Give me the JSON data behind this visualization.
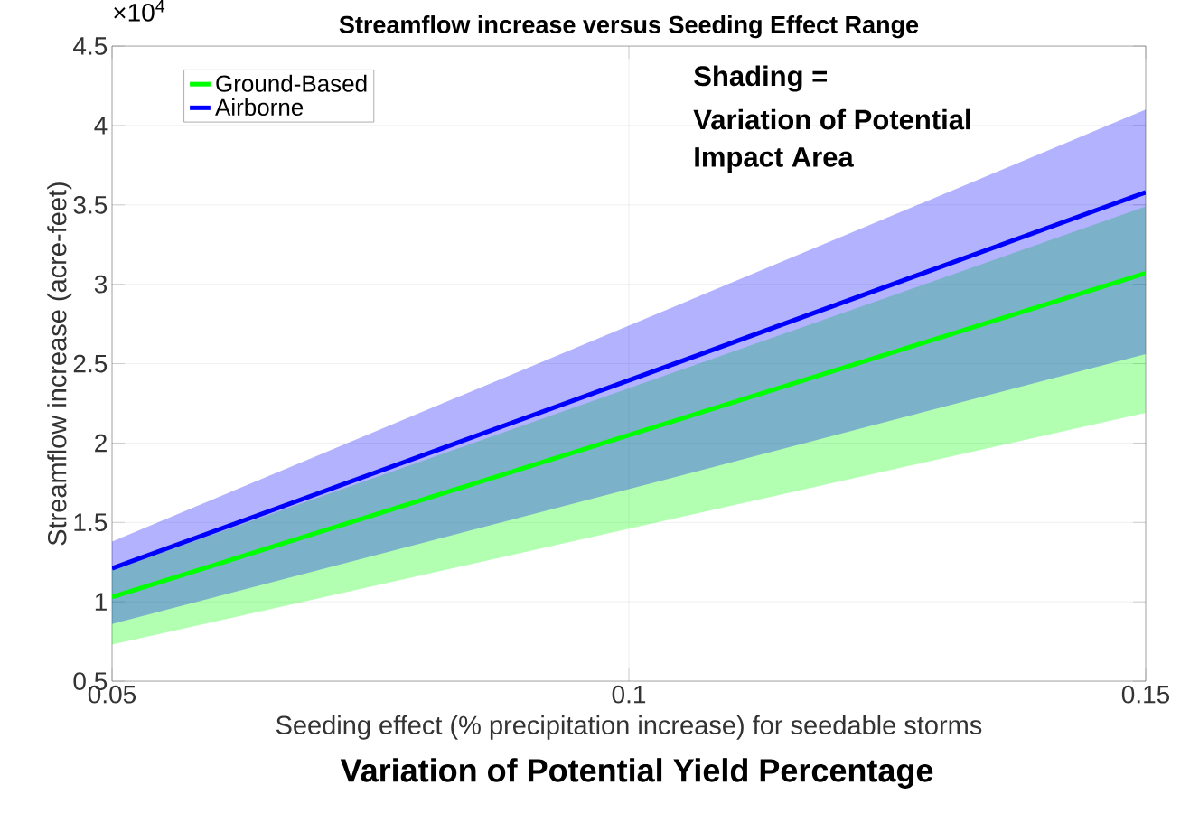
{
  "chart_data": {
    "type": "line",
    "title": "Streamflow increase versus Seeding Effect Range",
    "xlabel": "Seeding effect (% precipitation increase) for seedable storms",
    "ylabel": "Streamflow increase (acre-feet)",
    "annotations": [
      "×10$^{4}$",
      "Shading =",
      "Variation of Potential",
      "Impact Area",
      "Variation of Potential Yield Percentage"
    ],
    "x": [
      0.05,
      0.15
    ],
    "series": [
      {
        "name": "Ground-Based",
        "color": "#00ff00",
        "values": [
          1.03,
          3.07
        ],
        "lower": [
          0.73,
          2.19
        ],
        "upper": [
          1.2,
          3.49
        ]
      },
      {
        "name": "Airborne",
        "color": "#0000ff",
        "values": [
          1.21,
          3.58
        ],
        "lower": [
          0.86,
          2.56
        ],
        "upper": [
          1.38,
          4.1
        ]
      }
    ],
    "xlim": [
      0.05,
      0.15
    ],
    "xticks": [
      0.05,
      0.1,
      0.15
    ],
    "ylim": [
      0.5,
      4.5
    ],
    "yticks": [
      0.5,
      1,
      1.5,
      2,
      2.5,
      3,
      3.5,
      4,
      4.5
    ],
    "grid": true,
    "legend": "top left",
    "marker": "none",
    "line_style": "solid"
  }
}
